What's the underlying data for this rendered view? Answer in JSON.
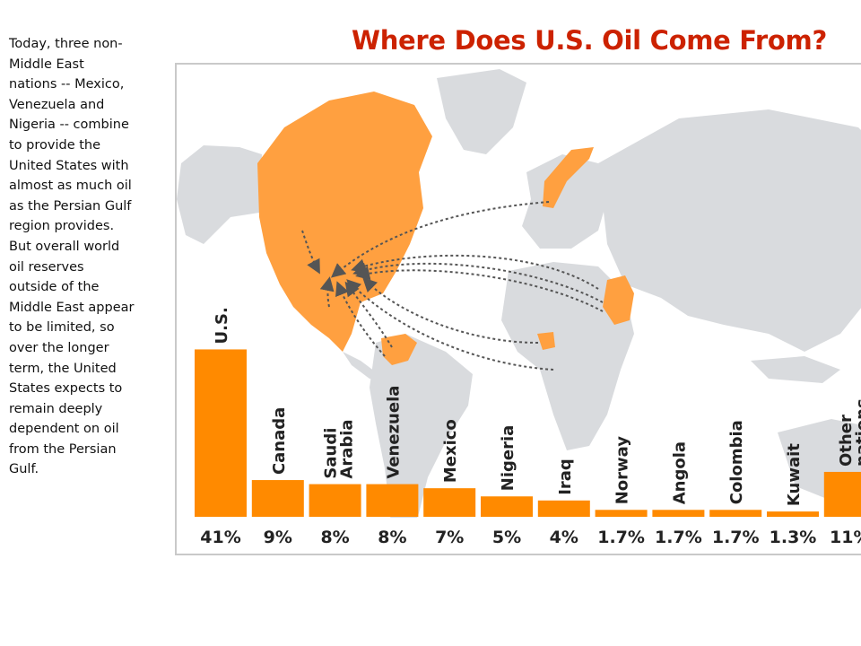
{
  "caption": "Today, three non-Middle East nations -- Mexico, Venezuela and Nigeria -- combine to provide the United States with almost as much oil as the Persian Gulf region provides. But overall world oil reserves outside of the Middle East appear to be limited, so over the longer term, the United States expects to remain deeply dependent on oil from the Persian Gulf.",
  "colors": {
    "bar": "#ff8a00",
    "title": "#cc2200",
    "land": "#d9dbde",
    "highlight": "#ffa040",
    "arrow": "#555555"
  },
  "chart_data": {
    "type": "bar",
    "title": "Where Does U.S. Oil Come From?",
    "categories": [
      "U.S.",
      "Canada",
      "Saudi Arabia",
      "Venezuela",
      "Mexico",
      "Nigeria",
      "Iraq",
      "Norway",
      "Angola",
      "Colombia",
      "Kuwait",
      "Other nations"
    ],
    "values": [
      41,
      9,
      8,
      8,
      7,
      5,
      4,
      1.7,
      1.7,
      1.7,
      1.3,
      11
    ],
    "value_labels": [
      "41%",
      "9%",
      "8%",
      "8%",
      "7%",
      "5%",
      "4%",
      "1.7%",
      "1.7%",
      "1.7%",
      "1.3%",
      "11%"
    ],
    "unit": "%",
    "background": "world map with arrows from supplier countries to the United States",
    "xlabel": "",
    "ylabel": ""
  }
}
